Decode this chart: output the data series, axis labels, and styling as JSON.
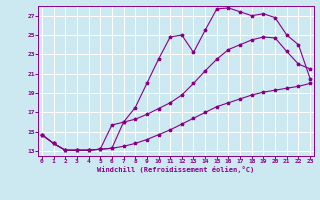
{
  "xlabel": "Windchill (Refroidissement éolien,°C)",
  "bg_color": "#cce8f0",
  "grid_color": "#ffffff",
  "line_color": "#880088",
  "x_ticks": [
    0,
    1,
    2,
    3,
    4,
    5,
    6,
    7,
    8,
    9,
    10,
    11,
    12,
    13,
    14,
    15,
    16,
    17,
    18,
    19,
    20,
    21,
    22,
    23
  ],
  "y_ticks": [
    13,
    15,
    17,
    19,
    21,
    23,
    25,
    27
  ],
  "xlim": [
    -0.3,
    23.3
  ],
  "ylim": [
    12.5,
    28.0
  ],
  "line1_x": [
    0,
    1,
    2,
    3,
    4,
    5,
    6,
    7,
    8,
    9,
    10,
    11,
    12,
    13,
    14,
    15,
    16,
    17,
    18,
    19,
    20,
    21,
    22,
    23
  ],
  "line1_y": [
    14.7,
    13.8,
    13.1,
    13.1,
    13.1,
    13.2,
    13.3,
    16.0,
    17.5,
    20.0,
    22.5,
    24.8,
    25.0,
    23.2,
    25.5,
    27.7,
    27.8,
    27.4,
    27.0,
    27.2,
    26.8,
    25.0,
    24.0,
    20.5
  ],
  "line2_x": [
    0,
    1,
    2,
    3,
    4,
    5,
    6,
    7,
    8,
    9,
    10,
    11,
    12,
    13,
    14,
    15,
    16,
    17,
    18,
    19,
    20,
    21,
    22,
    23
  ],
  "line2_y": [
    14.7,
    13.8,
    13.1,
    13.1,
    13.1,
    13.2,
    15.7,
    16.0,
    16.3,
    16.8,
    17.4,
    18.0,
    18.8,
    20.0,
    21.3,
    22.5,
    23.5,
    24.0,
    24.5,
    24.8,
    24.7,
    23.3,
    22.0,
    21.5
  ],
  "line3_x": [
    0,
    1,
    2,
    3,
    4,
    5,
    6,
    7,
    8,
    9,
    10,
    11,
    12,
    13,
    14,
    15,
    16,
    17,
    18,
    19,
    20,
    21,
    22,
    23
  ],
  "line3_y": [
    14.7,
    13.8,
    13.1,
    13.1,
    13.1,
    13.2,
    13.3,
    13.5,
    13.8,
    14.2,
    14.7,
    15.2,
    15.8,
    16.4,
    17.0,
    17.6,
    18.0,
    18.4,
    18.8,
    19.1,
    19.3,
    19.5,
    19.7,
    20.0
  ]
}
